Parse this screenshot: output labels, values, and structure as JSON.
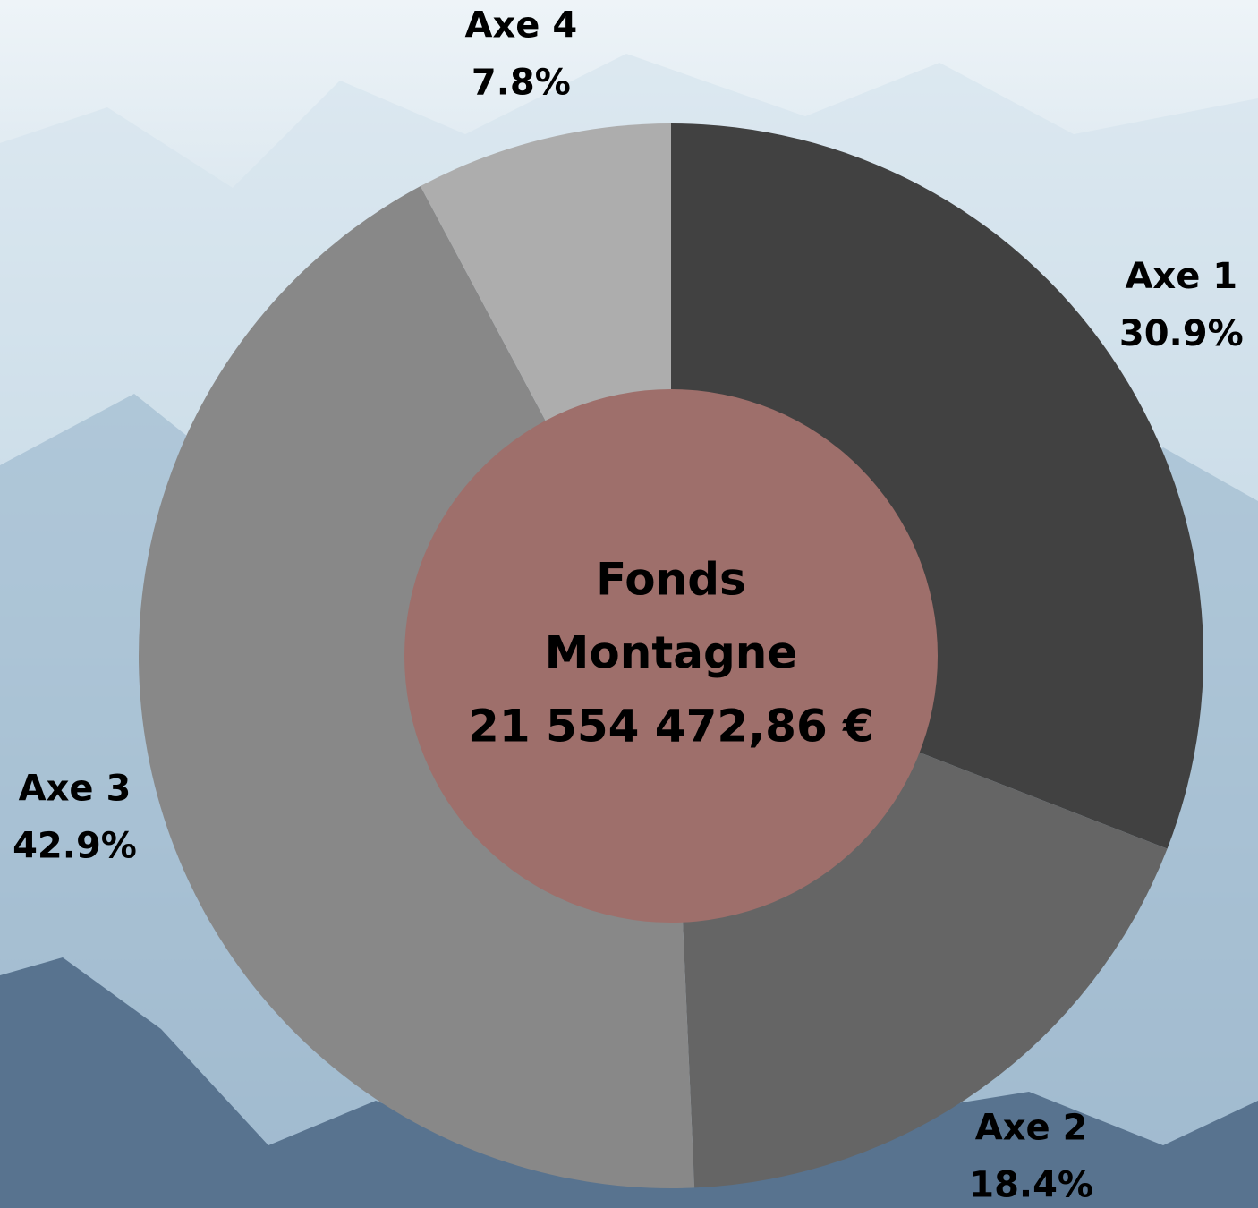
{
  "chart_data": {
    "type": "donut",
    "categories": [
      "Axe 1",
      "Axe 2",
      "Axe 3",
      "Axe 4"
    ],
    "values": [
      30.9,
      18.4,
      42.9,
      7.8
    ],
    "value_labels": [
      "30.9%",
      "18.4%",
      "42.9%",
      "7.8%"
    ],
    "colors": [
      "#414141",
      "#656565",
      "#888888",
      "#adadad"
    ],
    "center_color": "#9e6f6b",
    "center_text": [
      "Fonds",
      "Montagne",
      "21 554 472,86 €"
    ]
  }
}
